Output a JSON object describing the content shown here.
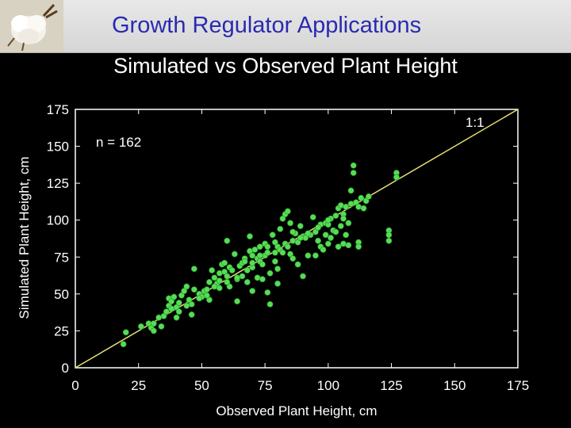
{
  "header": {
    "title": "Growth Regulator Applications"
  },
  "chart_data": {
    "type": "scatter",
    "title": "Simulated vs Observed Plant Height",
    "xlabel": "Observed Plant Height, cm",
    "ylabel": "Simulated Plant Height, cm",
    "xlim": [
      0,
      175
    ],
    "ylim": [
      0,
      175
    ],
    "xticks": [
      "0",
      "25",
      "50",
      "75",
      "100",
      "125",
      "150",
      "175"
    ],
    "yticks": [
      "0",
      "25",
      "50",
      "75",
      "100",
      "125",
      "150",
      "175"
    ],
    "annotations": {
      "n_label": "n = 162",
      "line_label": "1:1"
    },
    "grid": false,
    "reference_line": [
      [
        0,
        0
      ],
      [
        175,
        175
      ]
    ],
    "colors": {
      "points": "#55dd55",
      "line": "#e8e070",
      "axes": "#ffffff"
    },
    "points": [
      [
        19,
        16
      ],
      [
        20,
        24
      ],
      [
        26,
        28
      ],
      [
        29,
        30
      ],
      [
        30,
        27
      ],
      [
        31,
        30
      ],
      [
        31,
        25
      ],
      [
        33,
        34
      ],
      [
        34,
        28
      ],
      [
        35,
        35
      ],
      [
        36,
        38
      ],
      [
        37,
        42
      ],
      [
        37,
        47
      ],
      [
        38,
        45
      ],
      [
        39,
        48
      ],
      [
        40,
        34
      ],
      [
        40,
        41
      ],
      [
        41,
        44
      ],
      [
        42,
        49
      ],
      [
        43,
        52
      ],
      [
        44,
        55
      ],
      [
        45,
        46
      ],
      [
        46,
        43
      ],
      [
        46,
        36
      ],
      [
        47,
        67
      ],
      [
        47,
        53
      ],
      [
        49,
        50
      ],
      [
        50,
        48
      ],
      [
        51,
        52
      ],
      [
        52,
        53
      ],
      [
        53,
        46
      ],
      [
        53,
        58
      ],
      [
        54,
        66
      ],
      [
        55,
        61
      ],
      [
        56,
        57
      ],
      [
        57,
        64
      ],
      [
        57,
        54
      ],
      [
        58,
        70
      ],
      [
        59,
        71
      ],
      [
        59,
        65
      ],
      [
        60,
        62
      ],
      [
        60,
        86
      ],
      [
        61,
        68
      ],
      [
        61,
        55
      ],
      [
        62,
        66
      ],
      [
        63,
        77
      ],
      [
        64,
        45
      ],
      [
        64,
        60
      ],
      [
        65,
        69
      ],
      [
        66,
        62
      ],
      [
        66,
        71
      ],
      [
        67,
        74
      ],
      [
        68,
        58
      ],
      [
        68,
        66
      ],
      [
        69,
        89
      ],
      [
        69,
        79
      ],
      [
        70,
        68
      ],
      [
        70,
        76
      ],
      [
        70,
        52
      ],
      [
        71,
        80
      ],
      [
        72,
        74
      ],
      [
        72,
        61
      ],
      [
        73,
        82
      ],
      [
        73,
        72
      ],
      [
        74,
        70
      ],
      [
        74,
        60
      ],
      [
        75,
        84
      ],
      [
        75,
        76
      ],
      [
        76,
        78
      ],
      [
        76,
        51
      ],
      [
        77,
        64
      ],
      [
        77,
        43
      ],
      [
        78,
        90
      ],
      [
        79,
        85
      ],
      [
        79,
        72
      ],
      [
        80,
        82
      ],
      [
        80,
        67
      ],
      [
        80,
        57
      ],
      [
        81,
        94
      ],
      [
        81,
        80
      ],
      [
        82,
        101
      ],
      [
        82,
        78
      ],
      [
        83,
        104
      ],
      [
        83,
        84
      ],
      [
        84,
        106
      ],
      [
        84,
        82
      ],
      [
        85,
        77
      ],
      [
        85,
        98
      ],
      [
        86,
        86
      ],
      [
        86,
        74
      ],
      [
        87,
        91
      ],
      [
        88,
        85
      ],
      [
        88,
        70
      ],
      [
        89,
        96
      ],
      [
        90,
        89
      ],
      [
        90,
        62
      ],
      [
        91,
        88
      ],
      [
        92,
        76
      ],
      [
        93,
        90
      ],
      [
        94,
        102
      ],
      [
        95,
        76
      ],
      [
        95,
        92
      ],
      [
        96,
        86
      ],
      [
        97,
        97
      ],
      [
        97,
        82
      ],
      [
        98,
        80
      ],
      [
        99,
        98
      ],
      [
        99,
        90
      ],
      [
        100,
        84
      ],
      [
        100,
        97
      ],
      [
        101,
        101
      ],
      [
        101,
        88
      ],
      [
        102,
        93
      ],
      [
        103,
        92
      ],
      [
        104,
        108
      ],
      [
        104,
        82
      ],
      [
        105,
        110
      ],
      [
        105,
        96
      ],
      [
        106,
        84
      ],
      [
        106,
        104
      ],
      [
        107,
        109
      ],
      [
        107,
        90
      ],
      [
        108,
        83
      ],
      [
        108,
        98
      ],
      [
        109,
        120
      ],
      [
        109,
        111
      ],
      [
        110,
        137
      ],
      [
        110,
        132
      ],
      [
        111,
        112
      ],
      [
        112,
        109
      ],
      [
        112,
        85
      ],
      [
        112,
        82
      ],
      [
        113,
        115
      ],
      [
        114,
        108
      ],
      [
        115,
        113
      ],
      [
        116,
        116
      ],
      [
        124,
        93
      ],
      [
        124,
        90
      ],
      [
        124,
        86
      ],
      [
        127,
        132
      ],
      [
        127,
        129
      ],
      [
        92,
        91
      ],
      [
        96,
        95
      ],
      [
        100,
        100
      ],
      [
        103,
        103
      ],
      [
        106,
        101
      ],
      [
        89,
        88
      ],
      [
        86,
        92
      ],
      [
        79,
        78
      ],
      [
        76,
        82
      ],
      [
        73,
        76
      ],
      [
        70,
        71
      ],
      [
        67,
        72
      ],
      [
        64,
        61
      ],
      [
        60,
        58
      ],
      [
        57,
        59
      ],
      [
        55,
        55
      ],
      [
        52,
        49
      ],
      [
        49,
        47
      ],
      [
        44,
        42
      ],
      [
        41,
        38
      ],
      [
        38,
        40
      ]
    ]
  }
}
